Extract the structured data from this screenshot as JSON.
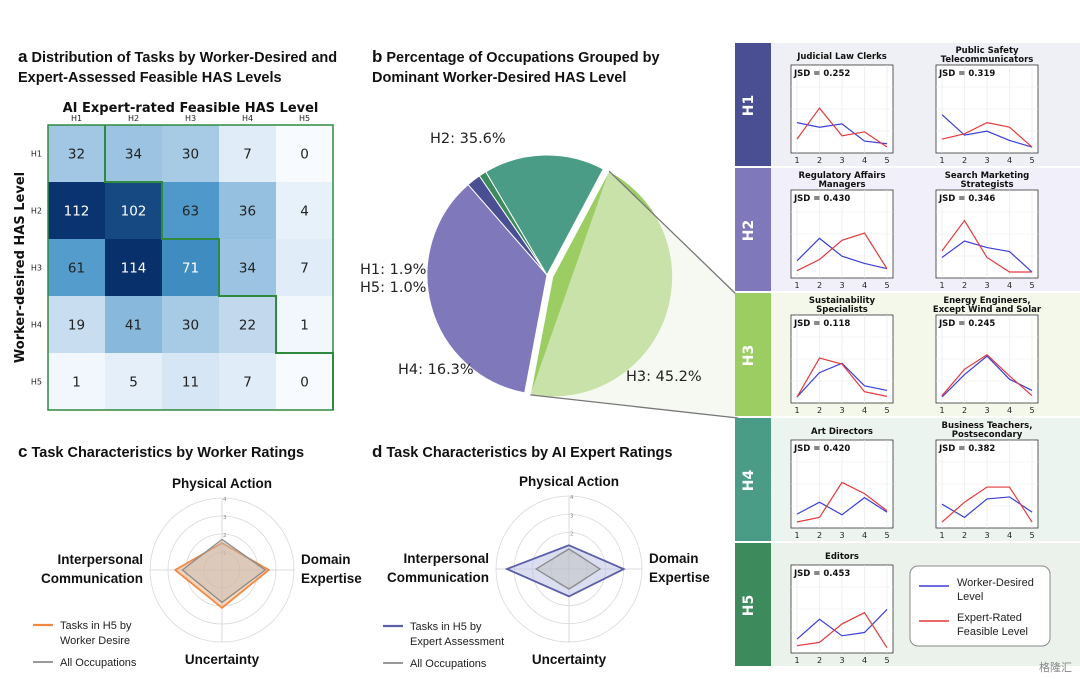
{
  "panel_a": {
    "letter": "a",
    "title_line1": "Distribution of Tasks by Worker-Desired and",
    "title_line2": "Expert-Assessed Feasible HAS Levels"
  },
  "panel_b": {
    "letter": "b",
    "title_line1": "Percentage of Occupations Grouped by",
    "title_line2": "Dominant Worker-Desired HAS Level"
  },
  "panel_c": {
    "letter": "c",
    "title": "Task Characteristics by Worker Ratings",
    "legend_orange_line1": "Tasks in H5 by",
    "legend_orange_line2": "Worker Desire",
    "legend_gray": "All Occupations"
  },
  "panel_d": {
    "letter": "d",
    "title": "Task Characteristics by AI Expert Ratings",
    "legend_blue_line1": "Tasks in H5 by",
    "legend_blue_line2": "Expert Assessment",
    "legend_gray": "All Occupations"
  },
  "panel_e": {
    "legend_blue_line1": "Worker-Desired",
    "legend_blue_line2": "Level",
    "legend_red_line1": "Expert-Rated",
    "legend_red_line2": "Feasible Level"
  },
  "watermark": "格隆汇",
  "colors": {
    "H1": "#4a4f94",
    "H2": "#7f78bb",
    "H3": "#9ccd63",
    "H4": "#4a9c87",
    "H5": "#3d8a5c",
    "worker_line": "#3b3fd6",
    "expert_line": "#e3393c",
    "orange": "#ef8a45",
    "gray": "#9a9a9a"
  },
  "chart_data": [
    {
      "type": "heatmap",
      "title": "Distribution of Tasks by Worker-Desired and Expert-Assessed Feasible HAS Levels",
      "xlabel": "AI Expert-rated Feasible HAS Level",
      "ylabel": "Worker-desired HAS Level",
      "x": [
        "H1",
        "H2",
        "H3",
        "H4",
        "H5"
      ],
      "y": [
        "H1",
        "H2",
        "H3",
        "H4",
        "H5"
      ],
      "values": [
        [
          32,
          34,
          30,
          7,
          0
        ],
        [
          112,
          102,
          63,
          36,
          4
        ],
        [
          61,
          114,
          71,
          34,
          7
        ],
        [
          19,
          41,
          30,
          22,
          1
        ],
        [
          1,
          5,
          11,
          7,
          0
        ]
      ]
    },
    {
      "type": "pie",
      "title": "Percentage of Occupations Grouped by Dominant Worker-Desired HAS Level",
      "labels": [
        "H3",
        "H2",
        "H1",
        "H5",
        "H4"
      ],
      "values": [
        45.2,
        35.6,
        1.9,
        1.0,
        16.3
      ],
      "display": [
        "H3: 45.2%",
        "H2: 35.6%",
        "H1: 1.9%",
        "H5: 1.0%",
        "H4: 16.3%"
      ]
    },
    {
      "type": "radar",
      "title": "Task Characteristics by Worker Ratings",
      "axes": [
        "Physical Action",
        "Domain Expertise",
        "Uncertainty",
        "Interpersonal Communication"
      ],
      "axis_top": "Physical Action",
      "axis_right_line1": "Domain",
      "axis_right_line2": "Expertise",
      "axis_bottom": "Uncertainty",
      "axis_left_line1": "Interpersonal",
      "axis_left_line2": "Communication",
      "rlim": [
        0,
        4
      ],
      "ticks": [
        "1",
        "2",
        "3",
        "4"
      ],
      "series": [
        {
          "name": "Tasks in H5 by Worker Desire",
          "values": [
            1.5,
            2.6,
            2.1,
            2.6
          ]
        },
        {
          "name": "All Occupations",
          "values": [
            1.7,
            2.4,
            1.8,
            2.2
          ]
        }
      ]
    },
    {
      "type": "radar",
      "title": "Task Characteristics by AI Expert Ratings",
      "axes": [
        "Physical Action",
        "Domain Expertise",
        "Uncertainty",
        "Interpersonal Communication"
      ],
      "axis_top": "Physical Action",
      "axis_right_line1": "Domain",
      "axis_right_line2": "Expertise",
      "axis_bottom": "Uncertainty",
      "axis_left_line1": "Interpersonal",
      "axis_left_line2": "Communication",
      "rlim": [
        0,
        4
      ],
      "ticks": [
        "1",
        "2",
        "3",
        "4"
      ],
      "series": [
        {
          "name": "Tasks in H5 by Expert Assessment",
          "values": [
            1.3,
            3.0,
            1.5,
            3.4
          ]
        },
        {
          "name": "All Occupations",
          "values": [
            1.1,
            1.7,
            1.1,
            1.8
          ]
        }
      ]
    },
    {
      "type": "line",
      "x": [
        1,
        2,
        3,
        4,
        5
      ],
      "ylim": [
        0,
        1
      ],
      "groups": [
        {
          "label": "H1",
          "charts": [
            {
              "title_line1": "Judicial Law Clerks",
              "title_line2": "",
              "jsd": "JSD = 0.252",
              "worker": [
                0.4,
                0.33,
                0.38,
                0.12,
                0.08
              ],
              "expert": [
                0.15,
                0.62,
                0.2,
                0.26,
                0.03
              ]
            },
            {
              "title_line1": "Public Safety",
              "title_line2": "Telecommunicators",
              "jsd": "JSD = 0.319",
              "worker": [
                0.52,
                0.21,
                0.27,
                0.13,
                0.03
              ],
              "expert": [
                0.15,
                0.23,
                0.4,
                0.33,
                0.03
              ]
            }
          ]
        },
        {
          "label": "H2",
          "charts": [
            {
              "title_line1": "Regulatory Affairs",
              "title_line2": "Managers",
              "jsd": "JSD = 0.430",
              "worker": [
                0.2,
                0.54,
                0.27,
                0.16,
                0.08
              ],
              "expert": [
                0.05,
                0.22,
                0.51,
                0.62,
                0.08
              ]
            },
            {
              "title_line1": "Search Marketing",
              "title_line2": "Strategists",
              "jsd": "JSD = 0.346",
              "worker": [
                0.25,
                0.5,
                0.4,
                0.34,
                0.03
              ],
              "expert": [
                0.35,
                0.81,
                0.25,
                0.03,
                0.03
              ]
            }
          ]
        },
        {
          "label": "H3",
          "charts": [
            {
              "title_line1": "Sustainability",
              "title_line2": "Specialists",
              "jsd": "JSD = 0.118",
              "worker": [
                0.03,
                0.4,
                0.54,
                0.2,
                0.13
              ],
              "expert": [
                0.03,
                0.62,
                0.53,
                0.11,
                0.04
              ]
            },
            {
              "title_line1": "Energy Engineers,",
              "title_line2": "Except Wind and Solar",
              "jsd": "JSD = 0.245",
              "worker": [
                0.03,
                0.37,
                0.65,
                0.3,
                0.13
              ],
              "expert": [
                0.05,
                0.45,
                0.67,
                0.35,
                0.05
              ]
            }
          ]
        },
        {
          "label": "H4",
          "charts": [
            {
              "title_line1": "Art Directors",
              "title_line2": "",
              "jsd": "JSD = 0.420",
              "worker": [
                0.15,
                0.33,
                0.14,
                0.4,
                0.18
              ],
              "expert": [
                0.03,
                0.1,
                0.63,
                0.46,
                0.2
              ]
            },
            {
              "title_line1": "Business Teachers,",
              "title_line2": "Postsecondary",
              "jsd": "JSD = 0.382",
              "worker": [
                0.3,
                0.1,
                0.38,
                0.41,
                0.18
              ],
              "expert": [
                0.03,
                0.33,
                0.56,
                0.56,
                0.03
              ]
            }
          ]
        },
        {
          "label": "H5",
          "charts": [
            {
              "title_line1": "Editors",
              "title_line2": "",
              "jsd": "JSD = 0.453",
              "worker": [
                0.15,
                0.45,
                0.2,
                0.25,
                0.6
              ],
              "expert": [
                0.05,
                0.1,
                0.38,
                0.55,
                0.02
              ]
            }
          ]
        }
      ]
    }
  ]
}
